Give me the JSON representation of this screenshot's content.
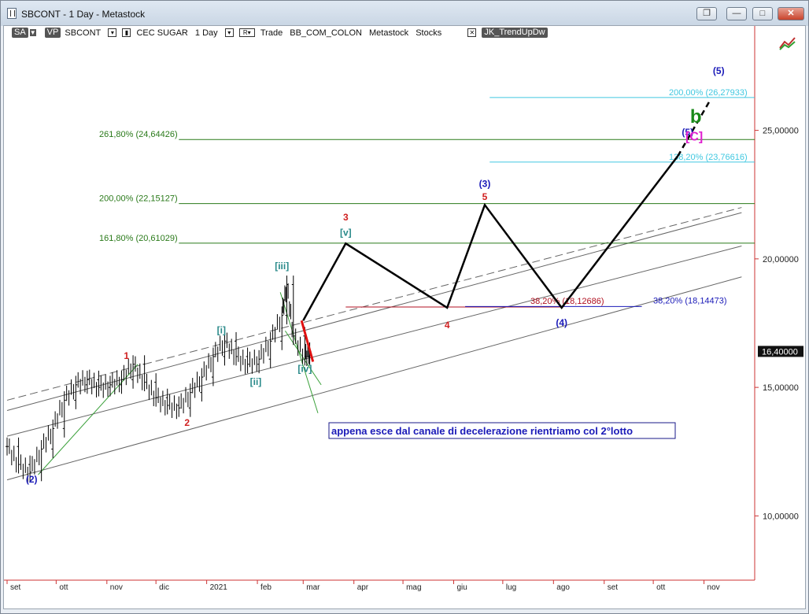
{
  "window": {
    "title": "SBCONT - 1 Day - Metastock",
    "buttons": {
      "restore_down": "❐",
      "minimize": "—",
      "maximize": "□",
      "close": "✕"
    }
  },
  "legend": {
    "sa": "SA",
    "vp": "VP",
    "symbol": "SBCONT",
    "name": "CEC SUGAR",
    "period": "1 Day",
    "mode": "Trade",
    "source": "BB_COM_COLON",
    "app": "Metastock",
    "category": "Stocks",
    "indicator": "JK_TrendUpDw"
  },
  "chart_data": {
    "type": "line",
    "x_axis_labels": [
      "set",
      "ott",
      "nov",
      "dic",
      "2021",
      "feb",
      "mar",
      "apr",
      "mag",
      "giu",
      "lug",
      "ago",
      "set",
      "ott",
      "nov"
    ],
    "y_ticks": [
      "10,00000",
      "15,00000",
      "20,00000",
      "25,00000"
    ],
    "ylim": [
      7.5,
      29
    ],
    "last_price_label": "16,40000",
    "price_series": {
      "x": [
        "2020-09-01",
        "2020-09-08",
        "2020-09-15",
        "2020-09-22",
        "2020-09-29",
        "2020-10-06",
        "2020-10-13",
        "2020-10-20",
        "2020-10-27",
        "2020-11-03",
        "2020-11-10",
        "2020-11-17",
        "2020-11-24",
        "2020-12-01",
        "2020-12-08",
        "2020-12-15",
        "2020-12-22",
        "2020-12-29",
        "2021-01-05",
        "2021-01-12",
        "2021-01-19",
        "2021-01-26",
        "2021-02-02",
        "2021-02-09",
        "2021-02-16",
        "2021-02-19",
        "2021-02-23",
        "2021-03-02",
        "2021-03-05"
      ],
      "y": [
        12.7,
        12.0,
        11.7,
        12.6,
        13.4,
        14.5,
        15.1,
        15.3,
        15.0,
        15.1,
        15.3,
        15.9,
        15.2,
        14.6,
        14.3,
        14.2,
        14.8,
        15.4,
        16.2,
        16.8,
        16.2,
        15.9,
        16.1,
        16.8,
        17.8,
        19.0,
        17.0,
        16.2,
        16.4
      ]
    },
    "fib_levels_b": [
      {
        "label": "261,80% (24,64426)",
        "value": 24.64426
      },
      {
        "label": "200,00% (22,15127)",
        "value": 22.15127
      },
      {
        "label": "161,80% (20,61029)",
        "value": 20.61029
      }
    ],
    "fib_levels_c": [
      {
        "label": "200,00% (26,27933)",
        "value": 26.27933
      },
      {
        "label": "138,20% (23,76616)",
        "value": 23.76616
      }
    ],
    "retracement_4_label": "38,20% (18,12686)",
    "retracement_4_value": 18.12686,
    "retracement_wave4_label": "38,20% (18,14473)",
    "retracement_wave4_value": 18.14473,
    "projection_path": {
      "x": [
        "2021-03-01",
        "2021-03-27",
        "2021-05-28",
        "2021-06-20",
        "2021-08-06",
        "2021-10-16"
      ],
      "y": [
        17.6,
        20.6,
        18.1,
        22.1,
        18.1,
        24.0
      ]
    },
    "projection_dashed": {
      "x": [
        "2021-10-16",
        "2021-11-05"
      ],
      "y": [
        24.0,
        26.2
      ]
    },
    "wave_labels": [
      {
        "text": "(2)",
        "color": "#1a1ab8",
        "x": "2020-09-16",
        "y": 11.3
      },
      {
        "text": "1",
        "color": "#d02020",
        "x": "2020-11-13",
        "y": 16.1
      },
      {
        "text": "2",
        "color": "#d02020",
        "x": "2020-12-20",
        "y": 13.5
      },
      {
        "text": "[i]",
        "color": "#2a8a8a",
        "x": "2021-01-10",
        "y": 17.1
      },
      {
        "text": "[ii]",
        "color": "#2a8a8a",
        "x": "2021-01-31",
        "y": 15.1
      },
      {
        "text": "[iii]",
        "color": "#2a8a8a",
        "x": "2021-02-16",
        "y": 19.6
      },
      {
        "text": "[iv]",
        "color": "#2a8a8a",
        "x": "2021-03-02",
        "y": 15.6
      },
      {
        "text": "3",
        "color": "#d02020",
        "x": "2021-03-27",
        "y": 21.5
      },
      {
        "text": "[v]",
        "color": "#2a8a8a",
        "x": "2021-03-27",
        "y": 20.9
      },
      {
        "text": "4",
        "color": "#d02020",
        "x": "2021-05-28",
        "y": 17.3
      },
      {
        "text": "(3)",
        "color": "#1a1ab8",
        "x": "2021-06-20",
        "y": 22.8
      },
      {
        "text": "5",
        "color": "#d02020",
        "x": "2021-06-20",
        "y": 22.3
      },
      {
        "text": "(4)",
        "color": "#1a1ab8",
        "x": "2021-08-06",
        "y": 17.4
      },
      {
        "text": "(5)",
        "color": "#1a1ab8",
        "x": "2021-10-22",
        "y": 24.8
      },
      {
        "text": "(5)",
        "color": "#1a1ab8",
        "x": "2021-11-10",
        "y": 27.2
      },
      {
        "text": "b",
        "color": "#1a8a1a",
        "x": "2021-10-27",
        "y": 25.3
      },
      {
        "text": "[C]",
        "color": "#e020d0",
        "x": "2021-10-26",
        "y": 24.6
      }
    ],
    "note": "appena esce dal canale di decelerazione rientriamo col 2°lotto",
    "colors": {
      "fib_b": "#2a7a1a",
      "fib_c": "#40c8e0",
      "retrace": "#b01020",
      "projection": "#000000",
      "channel": "#555555",
      "price": "#000000"
    }
  }
}
